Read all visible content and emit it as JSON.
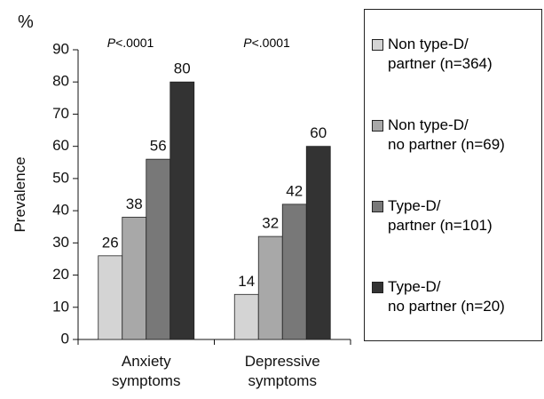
{
  "chart_data": {
    "type": "bar",
    "y_unit": "%",
    "ylabel": "Prevalence",
    "categories": [
      "Anxiety\nsymptoms",
      "Depressive\nsymptoms"
    ],
    "annotations": [
      "P<.0001",
      "P<.0001"
    ],
    "series": [
      {
        "name": "Non type-D/\npartner (n=364)",
        "color": "#d4d4d4",
        "values": [
          26,
          14
        ]
      },
      {
        "name": "Non type-D/\nno partner (n=69)",
        "color": "#a8a8a8",
        "values": [
          38,
          32
        ]
      },
      {
        "name": "Type-D/\npartner (n=101)",
        "color": "#787878",
        "values": [
          56,
          42
        ]
      },
      {
        "name": "Type-D/\nno partner (n=20)",
        "color": "#333333",
        "values": [
          80,
          60
        ]
      }
    ],
    "ylim": [
      0,
      90
    ],
    "yticks": [
      0,
      10,
      20,
      30,
      40,
      50,
      60,
      70,
      80,
      90
    ],
    "legend": "right"
  }
}
